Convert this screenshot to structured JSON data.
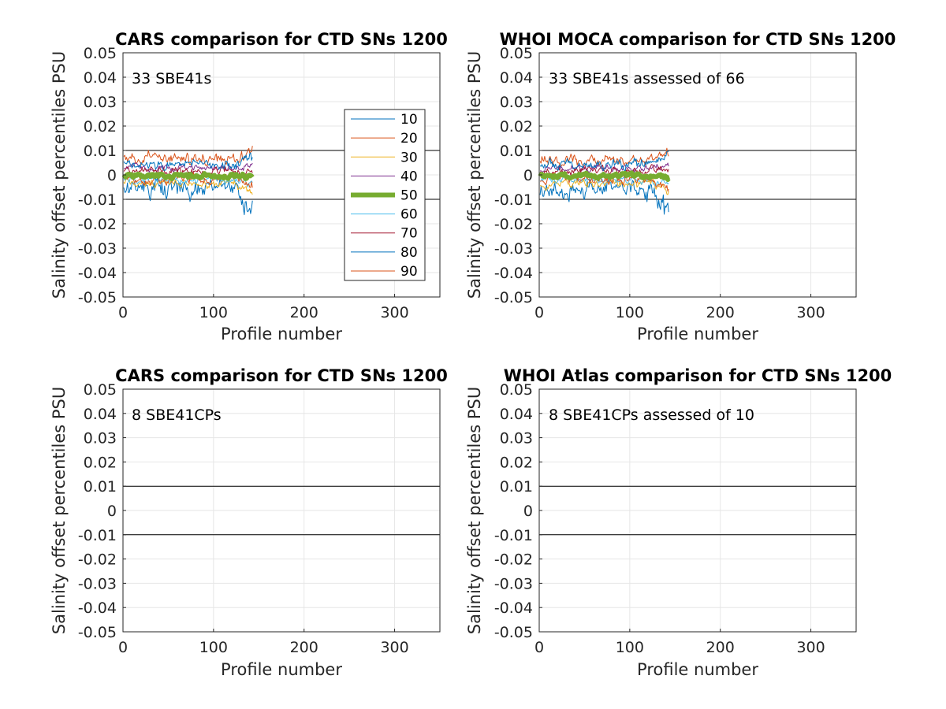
{
  "figure": {
    "panels": [
      {
        "title": "CARS comparison for CTD SNs 1200",
        "annotation": "33 SBE41s",
        "has_legend": true,
        "has_data": true,
        "seed": 11
      },
      {
        "title": "WHOI MOCA comparison for CTD SNs 1200",
        "annotation": "33 SBE41s assessed of 66",
        "has_legend": false,
        "has_data": true,
        "seed": 23
      },
      {
        "title": "CARS comparison for CTD SNs 1200",
        "annotation": "8 SBE41CPs",
        "has_legend": false,
        "has_data": false,
        "seed": 0
      },
      {
        "title": "WHOI Atlas comparison for CTD SNs 1200",
        "annotation": "8 SBE41CPs assessed of 10",
        "has_legend": false,
        "has_data": false,
        "seed": 0
      }
    ]
  },
  "chart_data": {
    "type": "line",
    "xlabel": "Profile number",
    "ylabel": "Salinity offset percentiles PSU",
    "xlim": [
      0,
      350
    ],
    "ylim": [
      -0.05,
      0.05
    ],
    "xticks": [
      0,
      100,
      200,
      300
    ],
    "yticks": [
      0.05,
      0.04,
      0.03,
      0.02,
      0.01,
      0,
      -0.01,
      -0.02,
      -0.03,
      -0.04,
      -0.05
    ],
    "ytick_labels": [
      "0.05",
      "0.04",
      "0.03",
      "0.02",
      "0.01",
      "0",
      "-0.01",
      "-0.02",
      "-0.03",
      "-0.04",
      "-0.05"
    ],
    "xtick_labels": [
      "0",
      "100",
      "200",
      "300"
    ],
    "grid": true,
    "reference_lines": [
      0.01,
      -0.01
    ],
    "legend_position": "inside-right",
    "profile_range": [
      1,
      143
    ],
    "series": [
      {
        "name": "10",
        "color": "#0072BD",
        "offset": -0.0055,
        "spread": 0.0035,
        "end_dip": -0.009
      },
      {
        "name": "20",
        "color": "#D95319",
        "offset": 0.0062,
        "spread": 0.0022,
        "end_dip": 0.004
      },
      {
        "name": "30",
        "color": "#EDB120",
        "offset": -0.0035,
        "spread": 0.0015,
        "end_dip": -0.003
      },
      {
        "name": "40",
        "color": "#7E2F8E",
        "offset": 0.0028,
        "spread": 0.0014,
        "end_dip": 0.0015
      },
      {
        "name": "50",
        "color": "#77AC30",
        "offset": -0.0003,
        "spread": 0.0008,
        "end_dip": -0.0005,
        "bold": true
      },
      {
        "name": "60",
        "color": "#4DBEEE",
        "offset": -0.0018,
        "spread": 0.0014,
        "end_dip": -0.002
      },
      {
        "name": "70",
        "color": "#A2142F",
        "offset": 0.0015,
        "spread": 0.0015,
        "end_dip": 0.001
      },
      {
        "name": "80",
        "color": "#0072BD",
        "offset": 0.0045,
        "spread": 0.002,
        "end_dip": 0.003
      },
      {
        "name": "90",
        "color": "#D95319",
        "offset": -0.0015,
        "spread": 0.0017,
        "end_dip": -0.003
      }
    ]
  }
}
